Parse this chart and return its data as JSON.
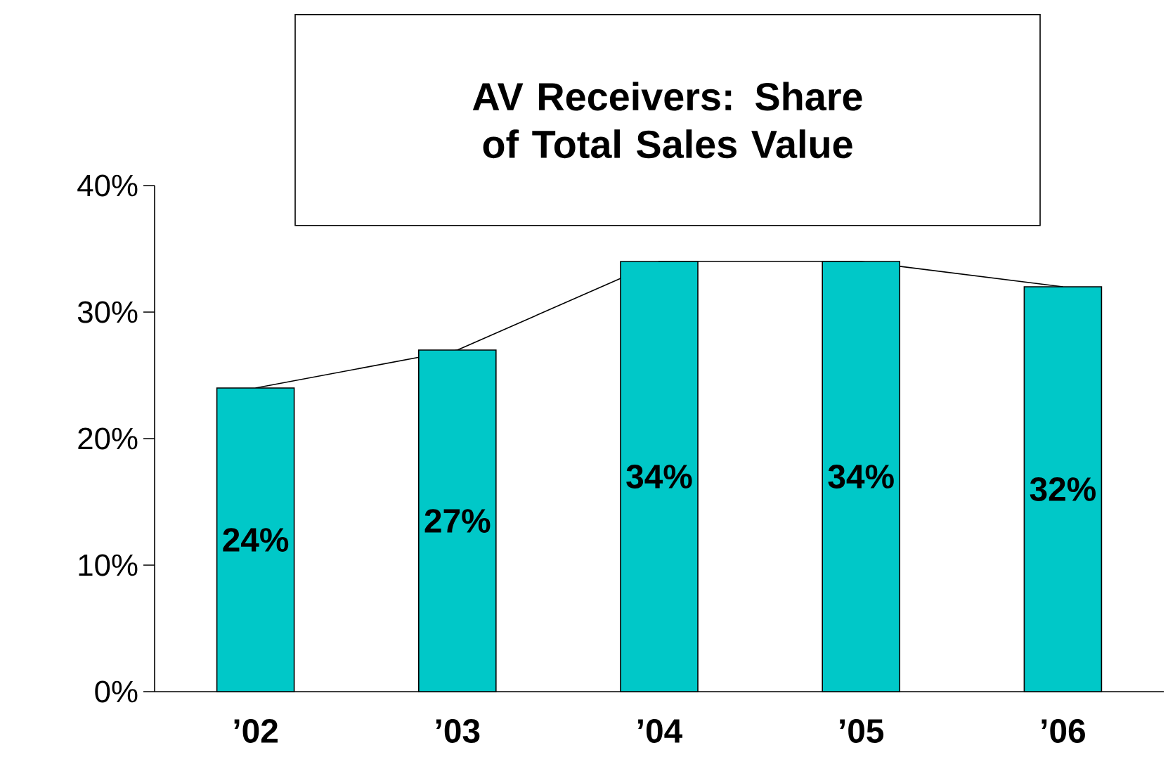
{
  "chart_data": {
    "type": "bar",
    "title": "AV Receivers: Share of Total Sales Value",
    "categories": [
      "’02",
      "’03",
      "’04",
      "’05",
      "’06"
    ],
    "series": [
      {
        "type": "line",
        "color": "#000000",
        "values": [
          24,
          27,
          34,
          34,
          32
        ]
      },
      {
        "color": "#00c8c8",
        "values": [
          24,
          27,
          34,
          34,
          32
        ]
      }
    ],
    "ylim": [
      0,
      40
    ],
    "yticks": [
      {
        "value": 0,
        "label": "0%"
      },
      {
        "value": 10,
        "label": "10%"
      },
      {
        "value": 20,
        "label": "20%"
      },
      {
        "value": 30,
        "label": "30%"
      },
      {
        "value": 40,
        "label": "40%"
      }
    ],
    "value_labels": [
      "24%",
      "27%",
      "34%",
      "34%",
      "32%"
    ],
    "grid": false
  }
}
